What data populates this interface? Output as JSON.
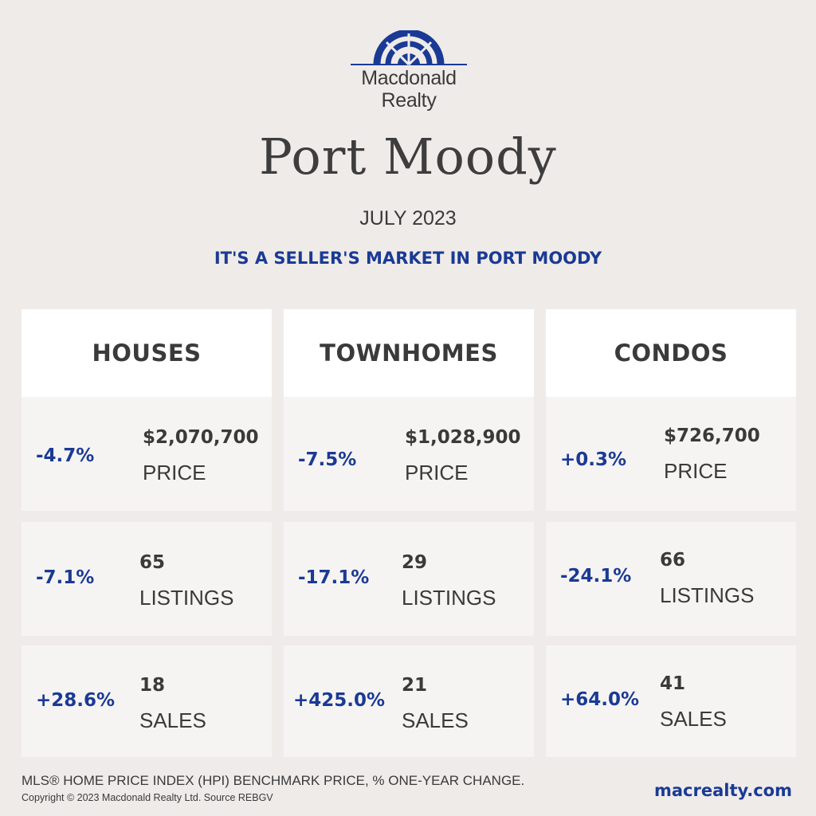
{
  "brand": {
    "name_line1": "Macdonald",
    "name_line2": "Realty",
    "color": "#1a3a94"
  },
  "city": "Port Moody",
  "month": "JULY 2023",
  "tagline": "IT'S A SELLER'S MARKET IN PORT MOODY",
  "columns": [
    {
      "title": "HOUSES",
      "price": {
        "pct": "-4.7%",
        "value": "$2,070,700",
        "label": "PRICE"
      },
      "listings": {
        "pct": "-7.1%",
        "value": "65",
        "label": "LISTINGS"
      },
      "sales": {
        "pct": "+28.6%",
        "value": "18",
        "label": "SALES"
      }
    },
    {
      "title": "TOWNHOMES",
      "price": {
        "pct": "-7.5%",
        "value": "$1,028,900",
        "label": "PRICE"
      },
      "listings": {
        "pct": "-17.1%",
        "value": "29",
        "label": "LISTINGS"
      },
      "sales": {
        "pct": "+425.0%",
        "value": "21",
        "label": "SALES"
      }
    },
    {
      "title": "CONDOS",
      "price": {
        "pct": "+0.3%",
        "value": "$726,700",
        "label": "PRICE"
      },
      "listings": {
        "pct": "-24.1%",
        "value": "66",
        "label": "LISTINGS"
      },
      "sales": {
        "pct": "+64.0%",
        "value": "41",
        "label": "SALES"
      }
    }
  ],
  "footnote": "MLS® HOME PRICE INDEX (HPI) BENCHMARK PRICE, % ONE-YEAR CHANGE.",
  "copyright": "Copyright © 2023 Macdonald Realty Ltd. Source REBGV",
  "website": "macrealty.com",
  "colors": {
    "background": "#efebe9",
    "accent": "#1a3a94",
    "text": "#3a3a3a"
  }
}
